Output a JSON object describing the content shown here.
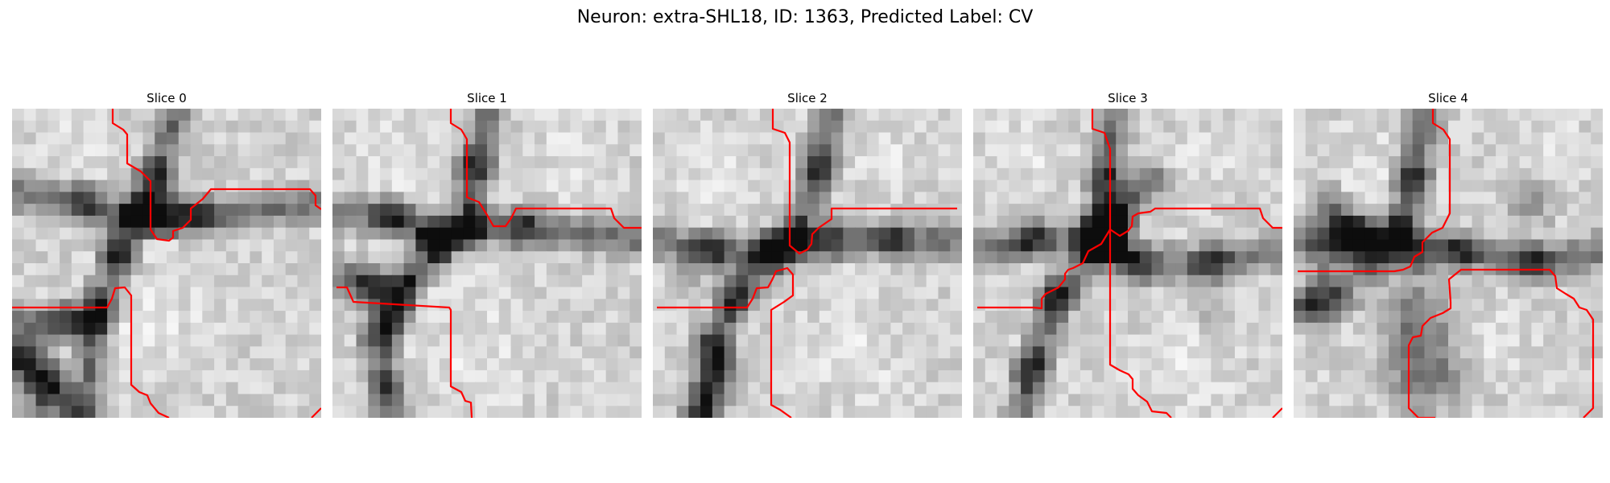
{
  "figure": {
    "title": "Neuron: extra-SHL18, ID: 1363, Predicted Label: CV",
    "slices": [
      {
        "title": "Slice 0"
      },
      {
        "title": "Slice 1"
      },
      {
        "title": "Slice 2"
      },
      {
        "title": "Slice 3"
      },
      {
        "title": "Slice 4"
      }
    ],
    "colors": {
      "contour": "#ff0000",
      "background": "#ffffff"
    }
  }
}
